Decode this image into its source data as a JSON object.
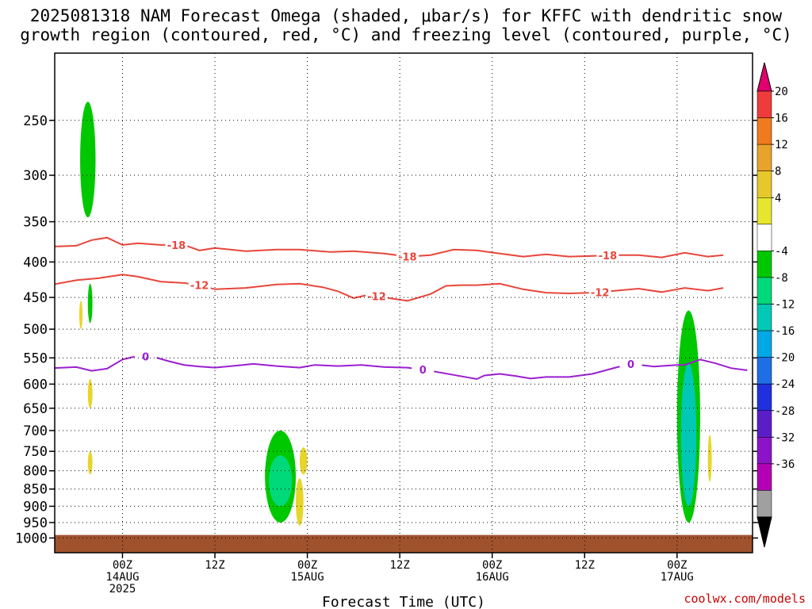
{
  "title": "2025081318 NAM Forecast Omega (shaded, μbar/s) for KFFC with dendritic snow\ngrowth region (contoured, red, °C) and freezing level (contoured, purple, °C)",
  "watermark": "coolwx.com/models",
  "chart_data": {
    "type": "heatmap",
    "title": "2025081318 NAM Forecast Omega (shaded, μbar/s) for KFFC with dendritic snow growth region (contoured, red, °C) and freezing level (contoured, purple, °C)",
    "xlabel": "Forecast Time (UTC)",
    "ylabel": "",
    "x_unit": "hours since 2025081318",
    "xlim": [
      -3,
      67
    ],
    "ylim": [
      1050,
      200
    ],
    "y_ticks": [
      250,
      300,
      350,
      400,
      450,
      500,
      550,
      600,
      650,
      700,
      750,
      800,
      850,
      900,
      950,
      1000
    ],
    "x_ticks": [
      {
        "hour": 6,
        "lines": [
          "00Z",
          "14AUG",
          "2025"
        ]
      },
      {
        "hour": 18,
        "lines": [
          "12Z"
        ]
      },
      {
        "hour": 30,
        "lines": [
          "00Z",
          "15AUG"
        ]
      },
      {
        "hour": 42,
        "lines": [
          "12Z"
        ]
      },
      {
        "hour": 54,
        "lines": [
          "00Z",
          "16AUG"
        ]
      },
      {
        "hour": 66,
        "lines": [
          "12Z"
        ]
      },
      {
        "hour": 78,
        "lines": [
          "00Z",
          "17AUG"
        ]
      }
    ],
    "colorbar": {
      "labels": [
        20,
        16,
        12,
        8,
        4,
        -4,
        -8,
        -12,
        -16,
        -20,
        -24,
        -28,
        -32,
        -36
      ],
      "colors": [
        "#e0006e",
        "#ef3b3b",
        "#f07a1e",
        "#e8a32a",
        "#e6c82a",
        "#e6e62e",
        "#ffffff",
        "#00c800",
        "#00d97a",
        "#00c8b4",
        "#00a8e6",
        "#1e6ee6",
        "#2030dc",
        "#5a1ec8",
        "#8c14c8",
        "#b400b4",
        "#a0a0a0",
        "#000000"
      ]
    },
    "contours": [
      {
        "label": "-18",
        "color": "#e8463c",
        "points": [
          [
            -3,
            380
          ],
          [
            0,
            379
          ],
          [
            2,
            372
          ],
          [
            4,
            369
          ],
          [
            6,
            378
          ],
          [
            8,
            376
          ],
          [
            11,
            378
          ],
          [
            14,
            378
          ],
          [
            16,
            385
          ],
          [
            18,
            382
          ],
          [
            22,
            386
          ],
          [
            26,
            384
          ],
          [
            29,
            384
          ],
          [
            33,
            387
          ],
          [
            36,
            386
          ],
          [
            40,
            389
          ],
          [
            43,
            393
          ],
          [
            46,
            391
          ],
          [
            49,
            384
          ],
          [
            52,
            385
          ],
          [
            55,
            389
          ],
          [
            58,
            393
          ],
          [
            61,
            390
          ],
          [
            64,
            393
          ],
          [
            67,
            392
          ],
          [
            70,
            391
          ],
          [
            73,
            391
          ],
          [
            76,
            394
          ],
          [
            79,
            388
          ],
          [
            82,
            393
          ],
          [
            84,
            391
          ]
        ]
      },
      {
        "label": "-12",
        "color": "#e8463c",
        "points": [
          [
            -3,
            431
          ],
          [
            0,
            425
          ],
          [
            3,
            422
          ],
          [
            6,
            417
          ],
          [
            8,
            420
          ],
          [
            11,
            427
          ],
          [
            14,
            429
          ],
          [
            16,
            432
          ],
          [
            18,
            438
          ],
          [
            22,
            436
          ],
          [
            26,
            431
          ],
          [
            29,
            430
          ],
          [
            32,
            435
          ],
          [
            34,
            441
          ],
          [
            36,
            451
          ],
          [
            38,
            446
          ],
          [
            40,
            450
          ],
          [
            43,
            455
          ],
          [
            46,
            445
          ],
          [
            48,
            433
          ],
          [
            50,
            432
          ],
          [
            52,
            432
          ],
          [
            55,
            430
          ],
          [
            58,
            438
          ],
          [
            61,
            443
          ],
          [
            64,
            444
          ],
          [
            67,
            443
          ],
          [
            70,
            440
          ],
          [
            73,
            437
          ],
          [
            76,
            442
          ],
          [
            79,
            436
          ],
          [
            82,
            440
          ],
          [
            84,
            436
          ]
        ]
      },
      {
        "label": "0",
        "color": "#9b1ed2",
        "points": [
          [
            -3,
            569
          ],
          [
            0,
            567
          ],
          [
            2,
            574
          ],
          [
            4,
            570
          ],
          [
            6,
            553
          ],
          [
            8,
            546
          ],
          [
            10,
            548
          ],
          [
            12,
            556
          ],
          [
            14,
            563
          ],
          [
            16,
            566
          ],
          [
            18,
            568
          ],
          [
            21,
            564
          ],
          [
            23,
            561
          ],
          [
            26,
            565
          ],
          [
            29,
            568
          ],
          [
            31,
            563
          ],
          [
            34,
            565
          ],
          [
            37,
            563
          ],
          [
            40,
            567
          ],
          [
            43,
            568
          ],
          [
            46,
            574
          ],
          [
            49,
            582
          ],
          [
            52,
            590
          ],
          [
            53,
            583
          ],
          [
            55,
            580
          ],
          [
            57,
            584
          ],
          [
            59,
            589
          ],
          [
            61,
            586
          ],
          [
            64,
            586
          ],
          [
            67,
            580
          ],
          [
            70,
            568
          ],
          [
            72,
            561
          ],
          [
            75,
            566
          ],
          [
            78,
            563
          ],
          [
            79,
            563
          ],
          [
            81,
            553
          ],
          [
            83,
            560
          ],
          [
            85,
            569
          ],
          [
            87,
            573
          ],
          [
            87,
            571
          ]
        ]
      }
    ],
    "omega_regions": [
      {
        "value": -6,
        "bounds": {
          "hour_range": [
            0.5,
            2.5
          ],
          "p_range": [
            235,
            345
          ]
        }
      },
      {
        "value": 6,
        "bounds": {
          "hour_range": [
            0.4,
            0.8
          ],
          "p_range": [
            455,
            500
          ]
        }
      },
      {
        "value": -6,
        "bounds": {
          "hour_range": [
            1.5,
            2.1
          ],
          "p_range": [
            430,
            490
          ]
        }
      },
      {
        "value": 6,
        "bounds": {
          "hour_range": [
            1.5,
            2.1
          ],
          "p_range": [
            590,
            650
          ]
        }
      },
      {
        "value": 6,
        "bounds": {
          "hour_range": [
            1.5,
            2.1
          ],
          "p_range": [
            750,
            810
          ]
        }
      },
      {
        "value": -6,
        "bounds": {
          "hour_range": [
            24.5,
            28.5
          ],
          "p_range": [
            700,
            950
          ]
        }
      },
      {
        "value": -10,
        "bounds": {
          "hour_range": [
            25,
            28
          ],
          "p_range": [
            760,
            900
          ]
        }
      },
      {
        "value": 6,
        "bounds": {
          "hour_range": [
            29,
            30
          ],
          "p_range": [
            740,
            810
          ]
        }
      },
      {
        "value": 6,
        "bounds": {
          "hour_range": [
            28.5,
            29.5
          ],
          "p_range": [
            820,
            960
          ]
        }
      },
      {
        "value": -6,
        "bounds": {
          "hour_range": [
            78,
            81
          ],
          "p_range": [
            470,
            950
          ]
        }
      },
      {
        "value": -12,
        "bounds": {
          "hour_range": [
            78.5,
            80.5
          ],
          "p_range": [
            560,
            900
          ]
        }
      },
      {
        "value": 6,
        "bounds": {
          "hour_range": [
            82,
            82.5
          ],
          "p_range": [
            710,
            830
          ]
        }
      }
    ],
    "ground": {
      "color": "#a0522d",
      "from_p": 990
    }
  }
}
